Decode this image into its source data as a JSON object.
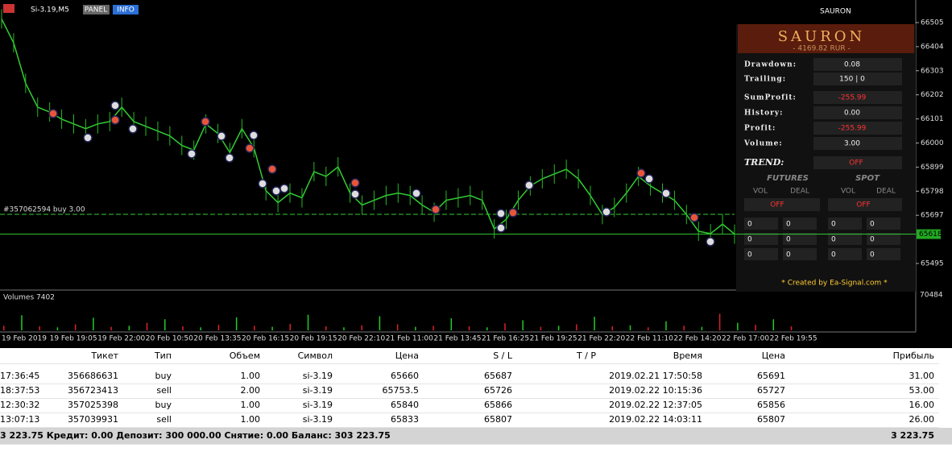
{
  "header": {
    "symbol": "Si-3.19,M5",
    "buttons": [
      "PANEL",
      "INFO"
    ],
    "ea_name": "SAURON"
  },
  "chart": {
    "type": "line",
    "ylim": [
      65440,
      66540
    ],
    "yticks": [
      66505,
      66404,
      66303,
      66202,
      66101,
      66000,
      65899,
      65798,
      65697,
      65495
    ],
    "current_price": 65618,
    "order_label": "#357062594 buy 3.00",
    "price": [
      66520,
      66420,
      66250,
      66150,
      66130,
      66100,
      66080,
      66060,
      66080,
      66090,
      66150,
      66090,
      66070,
      66050,
      66030,
      65990,
      65970,
      66080,
      66040,
      65960,
      66060,
      65980,
      65800,
      65750,
      65790,
      65770,
      65880,
      65860,
      65900,
      65790,
      65740,
      65760,
      65780,
      65790,
      65780,
      65740,
      65710,
      65760,
      65770,
      65780,
      65760,
      65640,
      65680,
      65760,
      65820,
      65850,
      65870,
      65890,
      65850,
      65780,
      65700,
      65730,
      65790,
      65860,
      65820,
      65790,
      65760,
      65700,
      65630,
      65620,
      65660,
      65618
    ],
    "volume_label": "Volumes 7402",
    "volume_max": 70484,
    "volumes": [
      9000,
      30000,
      8000,
      6000,
      12000,
      25000,
      7000,
      9000,
      15000,
      22000,
      8000,
      6000,
      11000,
      26000,
      9000,
      7000,
      13000,
      31000,
      8000,
      6000,
      10000,
      28000,
      12000,
      7000,
      9000,
      24000,
      8000,
      6000,
      14000,
      20000,
      7000,
      9000,
      12000,
      27000,
      8000,
      10000,
      6000,
      18000,
      9000,
      7000,
      33000,
      15000,
      11000,
      22000,
      8000
    ],
    "time_labels": [
      "19 Feb 2019",
      "19 Feb 19:05",
      "19 Feb 22:00",
      "20 Feb 10:50",
      "20 Feb 13:35",
      "20 Feb 16:15",
      "20 Feb 19:15",
      "20 Feb 22:10",
      "21 Feb 11:00",
      "21 Feb 13:45",
      "21 Feb 16:25",
      "21 Feb 19:25",
      "21 Feb 22:20",
      "22 Feb 11:10",
      "22 Feb 14:20",
      "22 Feb 17:00",
      "22 Feb 19:55"
    ]
  },
  "panel": {
    "title": "SAURON",
    "balance": "- 4169.82 RUR -",
    "rows": [
      {
        "label": "Drawdown:",
        "value": "0.08"
      },
      {
        "label": "Trailing:",
        "value": "150  |  0"
      },
      {
        "label": "SumProfit:",
        "value": "-255.99"
      },
      {
        "label": "History:",
        "value": "0.00"
      },
      {
        "label": "Profit:",
        "value": "-255.99"
      },
      {
        "label": "Volume:",
        "value": "3.00"
      }
    ],
    "trend_label": "TREND:",
    "trend_value": "OFF",
    "futures": "FUTURES",
    "spot": "SPOT",
    "vol": "VOL",
    "deal": "DEAL",
    "futures_state": "OFF",
    "spot_state": "OFF",
    "grid": [
      [
        "0",
        "0",
        "0",
        "0"
      ],
      [
        "0",
        "0",
        "0",
        "0"
      ],
      [
        "0",
        "0",
        "0",
        "0"
      ]
    ],
    "footer": "* Created by Ea-Signal.com *"
  },
  "table": {
    "headers": [
      "Тикет",
      "Тип",
      "Объем",
      "Символ",
      "Цена",
      "S / L",
      "T / P",
      "Время",
      "Цена",
      "Прибыль"
    ],
    "rows": [
      {
        "time": "17:36:45",
        "ticket": "356686631",
        "type": "buy",
        "volume": "1.00",
        "symbol": "si-3.19",
        "price": "65660",
        "sl": "65687",
        "close_time": "2019.02.21 17:50:58",
        "close_price": "65691",
        "profit": "31.00"
      },
      {
        "time": "18:37:53",
        "ticket": "356723413",
        "type": "sell",
        "volume": "2.00",
        "symbol": "si-3.19",
        "price": "65753.5",
        "sl": "65726",
        "close_time": "2019.02.22 10:15:36",
        "close_price": "65727",
        "profit": "53.00"
      },
      {
        "time": "12:30:32",
        "ticket": "357025398",
        "type": "buy",
        "volume": "1.00",
        "symbol": "si-3.19",
        "price": "65840",
        "sl": "65866",
        "close_time": "2019.02.22 12:37:05",
        "close_price": "65856",
        "profit": "16.00"
      },
      {
        "time": "13:07:13",
        "ticket": "357039931",
        "type": "sell",
        "volume": "1.00",
        "symbol": "si-3.19",
        "price": "65833",
        "sl": "65807",
        "close_time": "2019.02.22 14:03:11",
        "close_price": "65807",
        "profit": "26.00"
      }
    ],
    "summary": "3 223.75  Кредит: 0.00  Депозит: 300 000.00  Снятие: 0.00  Баланс: 303 223.75",
    "summary_total": "3 223.75"
  }
}
